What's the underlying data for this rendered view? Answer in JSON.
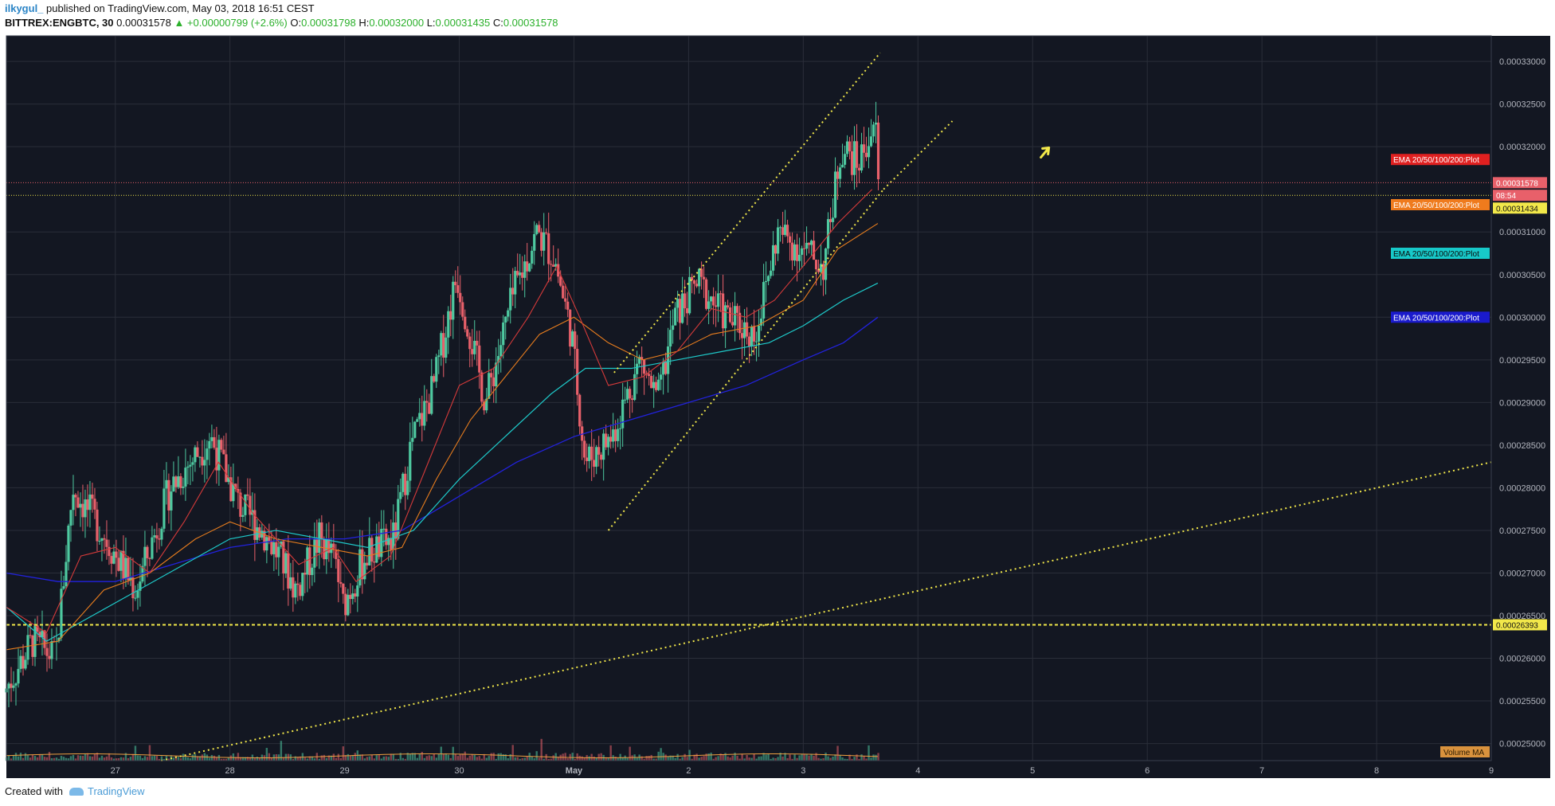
{
  "header": {
    "user": "ilkygul_",
    "published": "published on TradingView.com, May 03, 2018 16:51 CEST",
    "symbol": "BITTREX:ENGBTC, 30",
    "last": "0.00031578",
    "change": "▲ +0.00000799 (+2.6%)",
    "o_label": "O:",
    "o_val": "0.00031798",
    "h_label": "H:",
    "h_val": "0.00032000",
    "l_label": "L:",
    "l_val": "0.00031435",
    "c_label": "C:",
    "c_val": "0.00031578"
  },
  "footer": {
    "created": "Created with",
    "brand": "TradingView"
  },
  "colors": {
    "background": "#131722",
    "grid": "#2a2e39",
    "up": "#4ec9a0",
    "down": "#e8606a",
    "ema20": "#d43a3a",
    "ema50": "#e87d1e",
    "ema100": "#1ec9c9",
    "ema200": "#2222dd",
    "trend": "#f2e84a"
  },
  "chart_data": {
    "type": "candlestick",
    "ylim": [
      0.000248,
      0.000333
    ],
    "y_ticks": [
      "0.00033000",
      "0.00032500",
      "0.00032000",
      "0.00031000",
      "0.00030500",
      "0.00030000",
      "0.00029500",
      "0.00029000",
      "0.00028500",
      "0.00028000",
      "0.00027500",
      "0.00027000",
      "0.00026500",
      "0.00026000",
      "0.00025500",
      "0.00025000"
    ],
    "y_tick_values": [
      0.00033,
      0.000325,
      0.00032,
      0.00031,
      0.000305,
      0.0003,
      0.000295,
      0.00029,
      0.000285,
      0.00028,
      0.000275,
      0.00027,
      0.000265,
      0.00026,
      0.000255,
      0.00025
    ],
    "x_ticks": [
      "27",
      "28",
      "29",
      "30",
      "May",
      "2",
      "3",
      "4",
      "5",
      "6",
      "7",
      "8",
      "9"
    ],
    "x_tick_days": [
      1,
      2,
      3,
      4,
      5,
      6,
      7,
      8,
      9,
      10,
      11,
      12,
      13
    ],
    "xlim": [
      0.05,
      13.0
    ],
    "last_day": 7.67,
    "price_key": [
      {
        "d": 0.05,
        "p": 0.000256
      },
      {
        "d": 0.3,
        "p": 0.000262
      },
      {
        "d": 0.5,
        "p": 0.00026
      },
      {
        "d": 0.65,
        "p": 0.00028
      },
      {
        "d": 0.9,
        "p": 0.000275
      },
      {
        "d": 1.2,
        "p": 0.000268
      },
      {
        "d": 1.5,
        "p": 0.00028
      },
      {
        "d": 1.85,
        "p": 0.000286
      },
      {
        "d": 2.1,
        "p": 0.000278
      },
      {
        "d": 2.3,
        "p": 0.000275
      },
      {
        "d": 2.45,
        "p": 0.000272
      },
      {
        "d": 2.6,
        "p": 0.000268
      },
      {
        "d": 2.8,
        "p": 0.000274
      },
      {
        "d": 2.95,
        "p": 0.000271
      },
      {
        "d": 3.0,
        "p": 0.000266
      },
      {
        "d": 3.2,
        "p": 0.000272
      },
      {
        "d": 3.45,
        "p": 0.000274
      },
      {
        "d": 3.6,
        "p": 0.000285
      },
      {
        "d": 3.8,
        "p": 0.000292
      },
      {
        "d": 4.0,
        "p": 0.000305
      },
      {
        "d": 4.25,
        "p": 0.00029
      },
      {
        "d": 4.5,
        "p": 0.000303
      },
      {
        "d": 4.7,
        "p": 0.00031
      },
      {
        "d": 4.85,
        "p": 0.000307
      },
      {
        "d": 5.0,
        "p": 0.000298
      },
      {
        "d": 5.12,
        "p": 0.000283
      },
      {
        "d": 5.35,
        "p": 0.000286
      },
      {
        "d": 5.6,
        "p": 0.000295
      },
      {
        "d": 5.75,
        "p": 0.00029
      },
      {
        "d": 5.9,
        "p": 0.0003
      },
      {
        "d": 6.1,
        "p": 0.000304
      },
      {
        "d": 6.35,
        "p": 0.0003
      },
      {
        "d": 6.6,
        "p": 0.000298
      },
      {
        "d": 6.8,
        "p": 0.00031
      },
      {
        "d": 7.0,
        "p": 0.000308
      },
      {
        "d": 7.2,
        "p": 0.000306
      },
      {
        "d": 7.35,
        "p": 0.00032
      },
      {
        "d": 7.5,
        "p": 0.000318
      },
      {
        "d": 7.65,
        "p": 0.000323
      },
      {
        "d": 7.67,
        "p": 0.000316
      }
    ],
    "ema20_line": [
      [
        0.05,
        0.000266
      ],
      [
        0.4,
        0.000263
      ],
      [
        0.7,
        0.000272
      ],
      [
        1.0,
        0.000273
      ],
      [
        1.3,
        0.00027
      ],
      [
        1.6,
        0.000276
      ],
      [
        1.9,
        0.000283
      ],
      [
        2.2,
        0.000277
      ],
      [
        2.6,
        0.000271
      ],
      [
        2.9,
        0.000273
      ],
      [
        3.1,
        0.000269
      ],
      [
        3.4,
        0.000272
      ],
      [
        3.7,
        0.000282
      ],
      [
        4.0,
        0.000292
      ],
      [
        4.3,
        0.000294
      ],
      [
        4.6,
        0.0003
      ],
      [
        4.85,
        0.000306
      ],
      [
        5.05,
        0.0003
      ],
      [
        5.3,
        0.000292
      ],
      [
        5.6,
        0.000293
      ],
      [
        5.9,
        0.000296
      ],
      [
        6.2,
        0.000301
      ],
      [
        6.5,
        0.0003
      ],
      [
        6.75,
        0.000302
      ],
      [
        7.0,
        0.000306
      ],
      [
        7.3,
        0.000311
      ],
      [
        7.6,
        0.000315
      ]
    ],
    "ema50_line": [
      [
        0.05,
        0.000261
      ],
      [
        0.5,
        0.000262
      ],
      [
        0.9,
        0.000268
      ],
      [
        1.3,
        0.00027
      ],
      [
        1.7,
        0.000274
      ],
      [
        2.0,
        0.000276
      ],
      [
        2.4,
        0.000274
      ],
      [
        2.8,
        0.000273
      ],
      [
        3.2,
        0.000272
      ],
      [
        3.5,
        0.000273
      ],
      [
        3.8,
        0.000281
      ],
      [
        4.1,
        0.000288
      ],
      [
        4.4,
        0.000293
      ],
      [
        4.7,
        0.000298
      ],
      [
        5.0,
        0.0003
      ],
      [
        5.3,
        0.000297
      ],
      [
        5.6,
        0.000295
      ],
      [
        5.9,
        0.000296
      ],
      [
        6.2,
        0.000298
      ],
      [
        6.6,
        0.000299
      ],
      [
        7.0,
        0.000302
      ],
      [
        7.3,
        0.000308
      ],
      [
        7.65,
        0.000311
      ]
    ],
    "ema100_line": [
      [
        0.05,
        0.000266
      ],
      [
        0.4,
        0.000262
      ],
      [
        0.8,
        0.000265
      ],
      [
        1.2,
        0.000268
      ],
      [
        1.6,
        0.000271
      ],
      [
        2.0,
        0.000274
      ],
      [
        2.4,
        0.000275
      ],
      [
        2.8,
        0.000274
      ],
      [
        3.2,
        0.000273
      ],
      [
        3.6,
        0.000275
      ],
      [
        4.0,
        0.000281
      ],
      [
        4.4,
        0.000286
      ],
      [
        4.8,
        0.000291
      ],
      [
        5.1,
        0.000294
      ],
      [
        5.5,
        0.000294
      ],
      [
        5.9,
        0.000295
      ],
      [
        6.3,
        0.000296
      ],
      [
        6.7,
        0.000297
      ],
      [
        7.0,
        0.000299
      ],
      [
        7.35,
        0.000302
      ],
      [
        7.65,
        0.000304
      ]
    ],
    "ema200_line": [
      [
        0.05,
        0.00027
      ],
      [
        0.5,
        0.000269
      ],
      [
        1.0,
        0.000269
      ],
      [
        1.5,
        0.000271
      ],
      [
        2.0,
        0.000273
      ],
      [
        2.5,
        0.000274
      ],
      [
        3.0,
        0.000274
      ],
      [
        3.5,
        0.000275
      ],
      [
        4.0,
        0.000279
      ],
      [
        4.5,
        0.000283
      ],
      [
        5.0,
        0.000286
      ],
      [
        5.5,
        0.000288
      ],
      [
        6.0,
        0.00029
      ],
      [
        6.5,
        0.000292
      ],
      [
        7.0,
        0.000295
      ],
      [
        7.35,
        0.000297
      ],
      [
        7.65,
        0.0003
      ]
    ],
    "channel_upper": [
      [
        5.35,
        0.0002935
      ],
      [
        7.67,
        0.000331
      ]
    ],
    "channel_lower": [
      [
        5.3,
        0.000275
      ],
      [
        7.7,
        0.000315
      ]
    ],
    "channel_lower_ext": [
      [
        7.7,
        0.000315
      ],
      [
        8.3,
        0.000323
      ]
    ],
    "long_trend": [
      [
        1.4,
        0.000248
      ],
      [
        13.0,
        0.000283
      ]
    ],
    "horiz_lines": [
      {
        "price": 0.0003143,
        "style": "yellow-dot"
      },
      {
        "price": 0.00031578,
        "style": "red-dot"
      },
      {
        "price": 0.00026393,
        "style": "yellow-dash"
      }
    ],
    "labels_right": [
      {
        "text": "EMA 20/50/100/200:Plot",
        "price": 0.0003185,
        "bg": "#e02020",
        "color": "#ffffff"
      },
      {
        "text": "EMA 20/50/100/200:Plot",
        "price": 0.0003132,
        "bg": "#ef7b1d",
        "color": "#ffffff"
      },
      {
        "text": "EMA 20/50/100/200:Plot",
        "price": 0.0003075,
        "bg": "#17c9c9",
        "color": "#0a0a0a"
      },
      {
        "text": "EMA 20/50/100/200:Plot",
        "price": 0.0003,
        "bg": "#1a1acc",
        "color": "#ffffff"
      }
    ],
    "axis_tags": [
      {
        "text": "0.00031578",
        "price": 0.00031578,
        "bg": "#e8606a",
        "color": "#ffffff"
      },
      {
        "text": "08:54",
        "price": 0.0003143,
        "bg": "#e8606a",
        "color": "#ffffff"
      },
      {
        "text": "0.00031434",
        "price": 0.0003128,
        "bg": "#f2e84a",
        "color": "#111111"
      },
      {
        "text": "0.00026393",
        "price": 0.00026393,
        "bg": "#f2e84a",
        "color": "#111111"
      }
    ],
    "volume_label": "Volume MA",
    "arrow_at": {
      "d": 9.1,
      "p": 0.0003195
    }
  }
}
